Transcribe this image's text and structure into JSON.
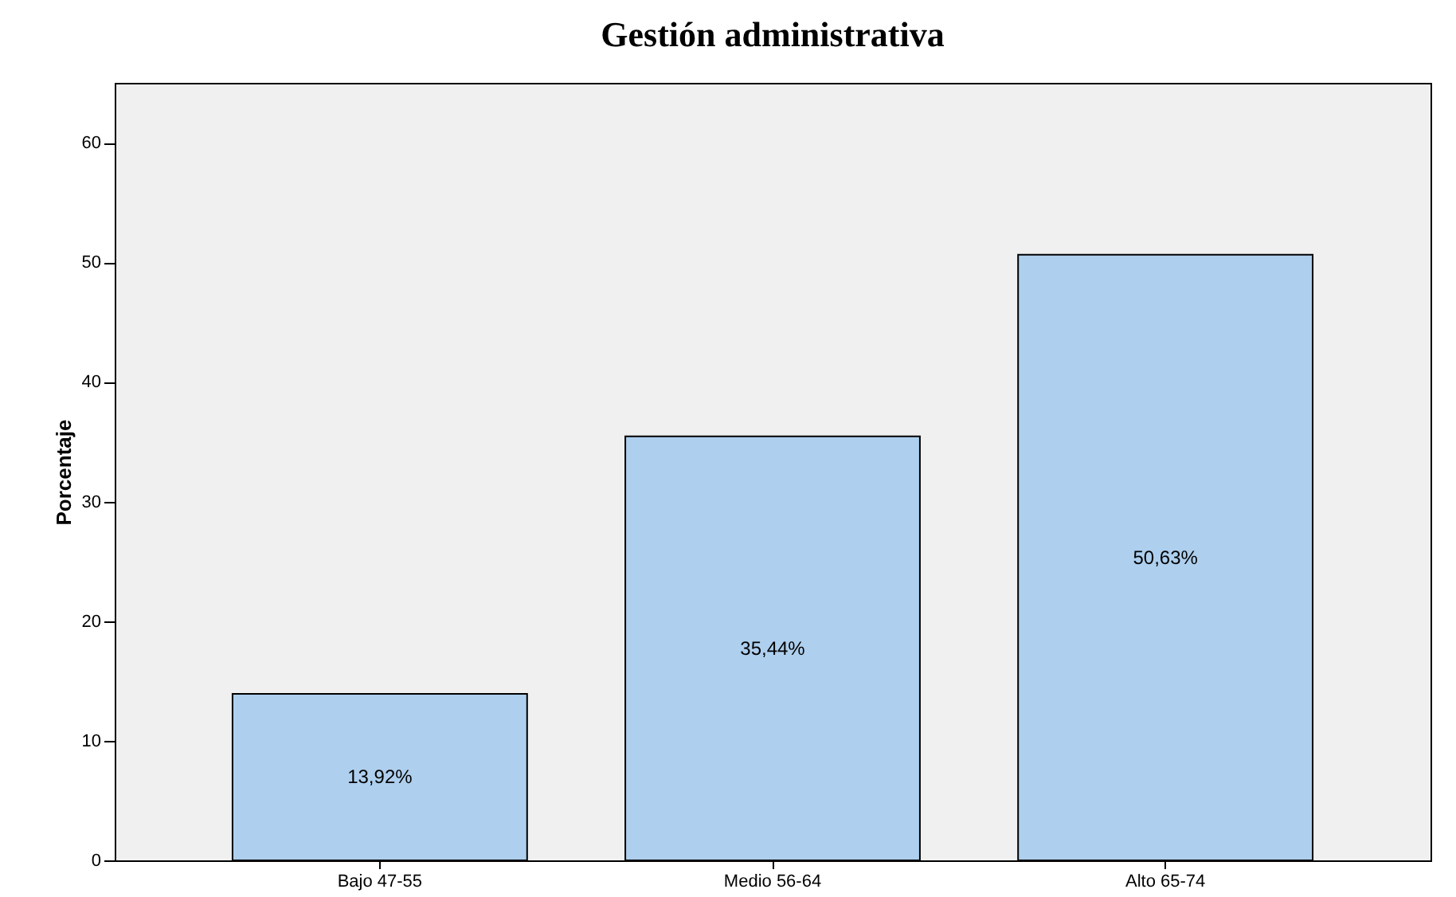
{
  "chart_data": {
    "type": "bar",
    "title": "Gestión administrativa",
    "ylabel": "Porcentaje",
    "categories": [
      "Bajo 47-55",
      "Medio 56-64",
      "Alto 65-74"
    ],
    "values": [
      13.92,
      35.44,
      50.63
    ],
    "value_labels": [
      "13,92%",
      "35,44%",
      "50,63%"
    ],
    "color": "#aecfee",
    "ylim": [
      0,
      65
    ],
    "yticks": [
      0,
      10,
      20,
      30,
      40,
      50,
      60
    ],
    "grid": false
  }
}
